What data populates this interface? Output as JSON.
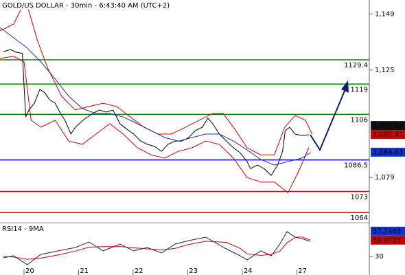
{
  "chart_data": [
    {
      "type": "line",
      "title": "GOLD/US DOLLAR - 30min - 6:43:40 AM (UTC+2)",
      "xlim": [
        -0.44,
        6.33
      ],
      "xticks": [
        {
          "value": 0,
          "label": "20"
        },
        {
          "value": 1,
          "label": "21"
        },
        {
          "value": 2,
          "label": "22"
        },
        {
          "value": 3,
          "label": "23"
        },
        {
          "value": 4,
          "label": "24"
        },
        {
          "value": 5,
          "label": "27"
        }
      ],
      "ylim": [
        1060.2,
        1155
      ],
      "yticks": [
        {
          "value": 1079,
          "label": "1,079"
        },
        {
          "value": 1125,
          "label": "1,125"
        },
        {
          "value": 1149,
          "label": "1,149"
        }
      ],
      "series": [
        {
          "color": "#000000",
          "x": [
            -0.38,
            -0.25,
            -0.13,
            -0.03,
            0.03,
            0.09,
            0.19,
            0.29,
            0.38,
            0.47,
            0.57,
            0.67,
            0.75,
            0.86,
            0.94,
            1.04,
            1.13,
            1.26,
            1.38,
            1.51,
            1.63,
            1.76,
            1.89,
            2.01,
            2.14,
            2.26,
            2.39,
            2.52,
            2.64,
            2.77,
            2.89,
            3.02,
            3.14,
            3.27,
            3.37,
            3.46,
            3.58,
            3.71,
            3.84,
            3.96,
            4.09,
            4.15,
            4.28,
            4.4,
            4.53,
            4.65,
            4.74,
            4.79,
            4.87,
            4.97,
            5.09,
            5.22
          ],
          "values": [
            1132.9,
            1133.8,
            1132.6,
            1132.1,
            1104.9,
            1107.9,
            1110.8,
            1116.7,
            1115.3,
            1112.3,
            1110.8,
            1106.4,
            1103.5,
            1097.6,
            1100.5,
            1102.6,
            1104.4,
            1106.4,
            1107.9,
            1107.0,
            1107.9,
            1102.0,
            1099.6,
            1097.6,
            1094.6,
            1093.2,
            1092.3,
            1090.2,
            1093.2,
            1094.6,
            1094.6,
            1096.1,
            1099.1,
            1100.5,
            1104.4,
            1102.0,
            1097.6,
            1094.6,
            1091.7,
            1089.6,
            1085.8,
            1082.8,
            1084.3,
            1082.8,
            1079.9,
            1084.3,
            1090.2,
            1099.1,
            1100.5,
            1097.6,
            1097.0,
            1097.29
          ]
        },
        {
          "color": "#cc0000",
          "x": [
            -0.44,
            -0.19,
            0,
            0.06,
            0.25,
            0.44,
            0.69,
            0.94,
            1.19,
            1.45,
            1.7,
            1.95,
            2.2,
            2.45,
            2.7,
            2.96,
            3.21,
            3.46,
            3.65,
            3.84,
            4.09,
            4.34,
            4.59,
            4.78,
            4.97,
            5.16,
            5.28
          ],
          "values": [
            1141.8,
            1144.7,
            1153.6,
            1152.7,
            1137.4,
            1125.6,
            1113.8,
            1107.9,
            1109.4,
            1110.8,
            1109.4,
            1104.9,
            1100.5,
            1097.6,
            1097.6,
            1100.5,
            1103.5,
            1106.4,
            1106.4,
            1100.5,
            1091.7,
            1088.7,
            1088.7,
            1100.5,
            1105.5,
            1103.5,
            1097.6
          ]
        },
        {
          "color": "#cc0000",
          "x": [
            -0.44,
            -0.19,
            0,
            0.13,
            0.31,
            0.57,
            0.82,
            1.07,
            1.32,
            1.57,
            1.82,
            2.08,
            2.33,
            2.58,
            2.83,
            3.08,
            3.33,
            3.58,
            3.84,
            4.09,
            4.34,
            4.59,
            4.84,
            5.03,
            5.22
          ],
          "values": [
            1130.0,
            1130.9,
            1128.5,
            1103.5,
            1100.5,
            1103.5,
            1094.6,
            1093.2,
            1097.6,
            1102.0,
            1097.6,
            1091.7,
            1088.7,
            1087.3,
            1090.2,
            1091.7,
            1094.6,
            1093.2,
            1087.3,
            1079.0,
            1077.0,
            1077.0,
            1072.5,
            1081.4,
            1091.7
          ]
        },
        {
          "color": "#2233aa",
          "x": [
            -0.44,
            -0.19,
            0.06,
            0.31,
            0.57,
            0.82,
            1.07,
            1.32,
            1.57,
            1.82,
            2.08,
            2.33,
            2.58,
            2.83,
            3.08,
            3.33,
            3.58,
            3.84,
            4.09,
            4.34,
            4.59,
            4.84,
            5.09,
            5.25
          ],
          "values": [
            1143.2,
            1138.8,
            1134.4,
            1128.5,
            1121.2,
            1113.8,
            1108.5,
            1106.4,
            1106.4,
            1104.9,
            1102.0,
            1099.1,
            1096.1,
            1094.6,
            1096.1,
            1097.6,
            1097.6,
            1094.6,
            1090.8,
            1086.7,
            1084.3,
            1085.8,
            1087.3,
            1089.6
          ]
        }
      ],
      "levels": {
        "values": [
          1129.4,
          1119,
          1106,
          1086.5,
          1073,
          1064
        ],
        "colors": [
          "#008000",
          "#008000",
          "#008000",
          "#0000cc",
          "#dd0000",
          "#dd0000"
        ]
      },
      "price_tags": [
        {
          "value": 1097.41,
          "label": "1,097.41",
          "color": "#cc0000"
        },
        {
          "value": 1097.29,
          "label": "1,097.29",
          "color": "#111111"
        },
        {
          "value": 1089.83,
          "label": "1,089.83",
          "color": "#1133cc"
        }
      ]
    },
    {
      "type": "line",
      "title": "RSI14 - 9MA",
      "ylim": [
        0,
        88
      ],
      "yticks": [
        30
      ],
      "series": [
        {
          "color": "#1a1a66",
          "x": [
            -0.38,
            -0.19,
            0.06,
            0.31,
            0.63,
            0.94,
            1.19,
            1.45,
            1.76,
            2.01,
            2.26,
            2.52,
            2.77,
            3.02,
            3.33,
            3.71,
            3.96,
            4.09,
            4.34,
            4.53,
            4.69,
            4.82,
            4.97,
            5.09,
            5.25
          ],
          "values": [
            27.7,
            31.4,
            15.1,
            34.0,
            40.3,
            46.5,
            56.6,
            40.3,
            52.8,
            40.3,
            46.5,
            36.5,
            52.8,
            59.1,
            65.4,
            44.0,
            31.4,
            23.9,
            40.3,
            31.4,
            52.8,
            75.5,
            65.4,
            62.9,
            57.7403
          ]
        },
        {
          "color": "#cc0000",
          "x": [
            -0.38,
            -0.19,
            0.06,
            0.31,
            0.63,
            0.94,
            1.19,
            1.45,
            1.76,
            2.01,
            2.26,
            2.52,
            2.77,
            3.02,
            3.33,
            3.71,
            3.96,
            4.09,
            4.34,
            4.53,
            4.69,
            4.82,
            4.97,
            5.09,
            5.25
          ],
          "values": [
            30,
            29,
            25,
            27,
            33,
            40,
            47,
            48,
            48,
            46,
            44,
            42,
            45,
            52,
            58,
            56,
            45,
            35,
            32,
            34,
            40,
            55,
            65,
            66,
            59.9735
          ]
        }
      ],
      "price_tags": [
        {
          "value": 59.9735,
          "color": "#cc0000"
        },
        {
          "value": 57.7403,
          "color": "#1133cc"
        }
      ]
    }
  ]
}
